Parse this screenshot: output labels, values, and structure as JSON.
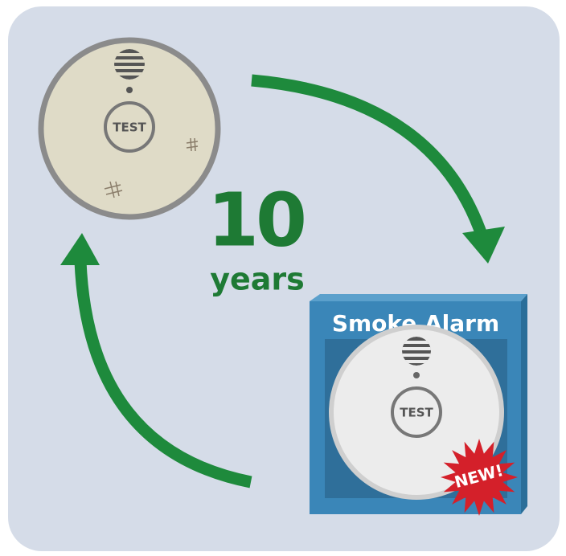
{
  "old_alarm": {
    "button": "TEST"
  },
  "label": {
    "number": "10",
    "unit": "years"
  },
  "package": {
    "title": "Smoke Alarm",
    "button": "TEST",
    "badge": "NEW!"
  }
}
